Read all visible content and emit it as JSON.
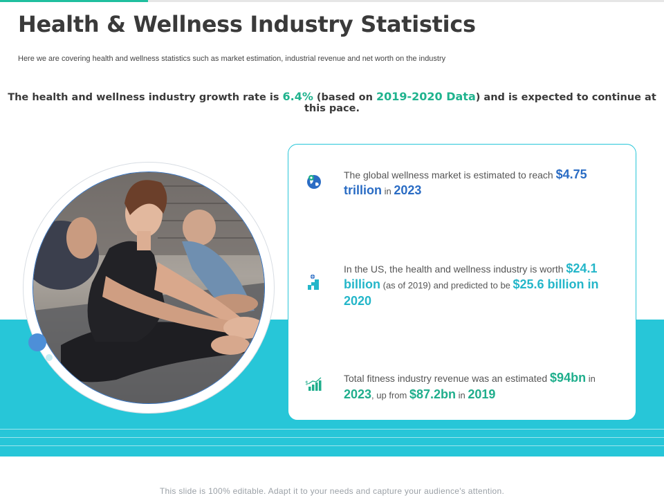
{
  "title": "Health & Wellness Industry Statistics",
  "subtitle": "Here we are covering health and wellness statistics such as market estimation, industrial revenue and net worth on the industry",
  "growth": {
    "prefix": "The health and wellness industry growth rate is ",
    "rate": "6.4%",
    "middle": " (based on ",
    "data_year": "2019-2020 Data",
    "suffix": ") and is expected to continue at this pace."
  },
  "stats": [
    {
      "icon": "globe-pin-icon",
      "text1": "The global  wellness market is estimated to reach ",
      "value1": "$4.75 trillion",
      "text2": " in ",
      "value2": "2023"
    },
    {
      "icon": "growth-building-icon",
      "text1": "In the US, the health and wellness industry is worth ",
      "value1": "$24.1 billion",
      "text2": " (as of 2019) and predicted to be ",
      "value2": "$25.6 billion in 2020"
    },
    {
      "icon": "revenue-bar-chart-icon",
      "text1": "Total fitness industry revenue was an estimated ",
      "value1": "$94bn",
      "text2": " in ",
      "value2": "2023",
      "text3": ", up from ",
      "value3": "$87.2bn",
      "text4": " in ",
      "value4": "2019"
    }
  ],
  "image": {
    "icon": "yoga-stretch-photo"
  },
  "colors": {
    "accent_teal": "#27c6d8",
    "accent_green": "#1fae8c",
    "accent_blue": "#2a6cc4"
  },
  "footer": "This slide is 100% editable. Adapt it to your needs and capture your audience's attention."
}
